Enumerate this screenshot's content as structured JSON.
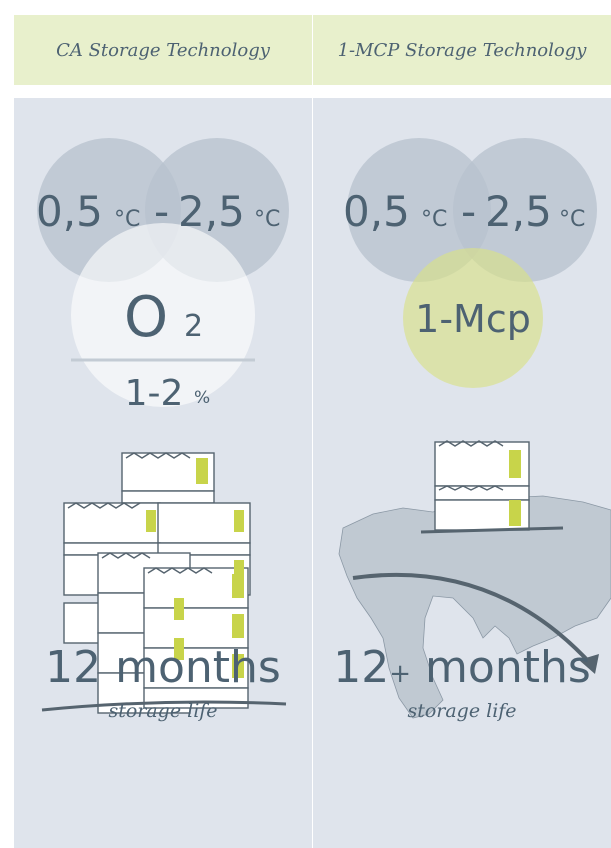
{
  "colors": {
    "header_bg": "#e8f0cc",
    "panel_bg": "#dfe4ec",
    "circle": "#b7c2cd",
    "text": "#4d6272",
    "accent": "#d9e089",
    "box_label": "#c8d44a"
  },
  "columns": [
    {
      "title": "CA Storage Technology",
      "temp_low": "0,5",
      "temp_high": "2,5",
      "temp_unit": "°C",
      "temp_sep": "-",
      "gas_label": "O",
      "gas_sub": "2",
      "gas_value": "1-2",
      "gas_unit": "%",
      "duration": "12",
      "duration_unit": "months",
      "caption": "storage life",
      "icons": [
        "stacked-boxes-icon"
      ]
    },
    {
      "title": "1-MCP Storage Technology",
      "temp_low": "0,5",
      "temp_high": "2,5",
      "temp_unit": "°C",
      "temp_sep": "-",
      "agent_label": "1-Mcp",
      "duration": "12",
      "duration_plus": "+",
      "duration_unit": "months",
      "caption": "storage life",
      "icons": [
        "boxes-icon",
        "world-map-icon",
        "arrow-icon"
      ]
    }
  ]
}
